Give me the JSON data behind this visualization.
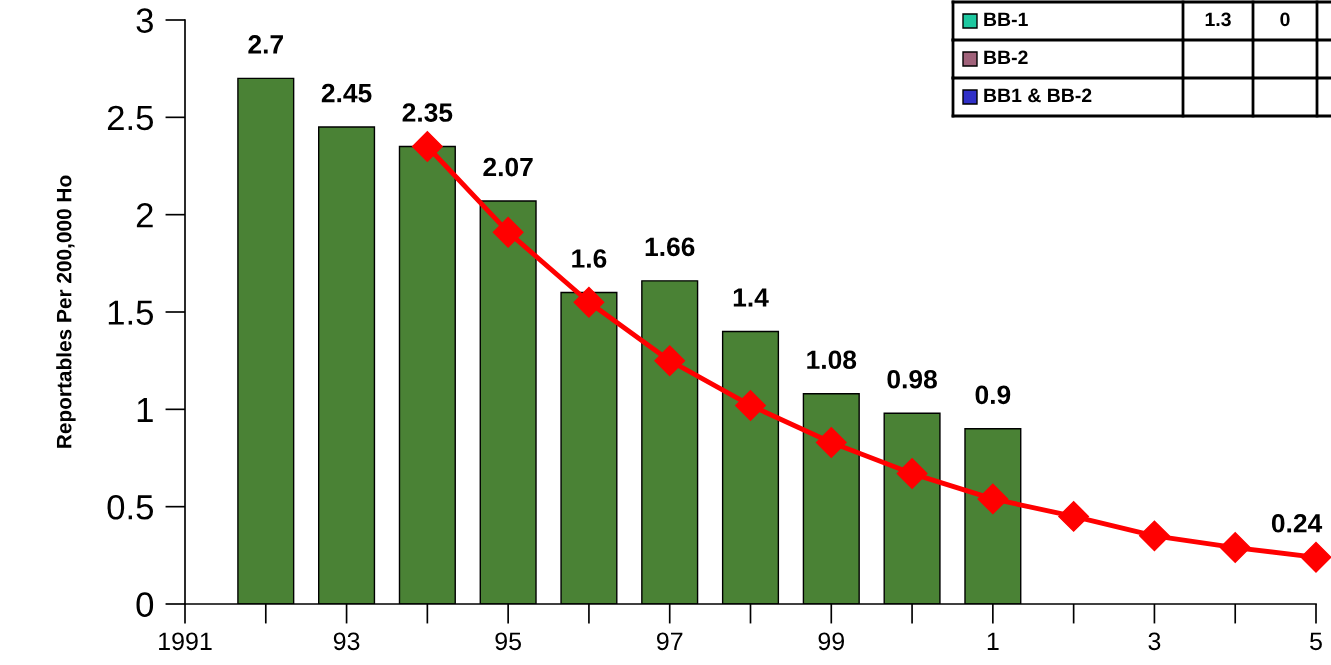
{
  "chart_data": {
    "type": "bar",
    "ylabel": "Reportables Per 200,000 Ho",
    "categories": [
      "1991",
      null,
      "93",
      null,
      "95",
      null,
      "97",
      null,
      "99",
      null,
      "1",
      null,
      "3",
      null,
      "5"
    ],
    "ylim": [
      0,
      3
    ],
    "yticks": [
      0,
      0.5,
      1,
      1.5,
      2,
      2.5,
      3
    ],
    "grid": false,
    "legend": false,
    "series": [
      {
        "color": "#4a8235",
        "values": [
          null,
          2.7,
          2.45,
          2.35,
          2.07,
          1.6,
          1.66,
          1.4,
          1.08,
          0.98,
          0.9,
          null,
          null,
          null,
          null
        ],
        "data_labels": true
      },
      {
        "type": "line",
        "color": "#ff0000",
        "marker": "diamond",
        "line_style": "solid",
        "values": [
          null,
          null,
          null,
          2.35,
          1.91,
          1.55,
          1.25,
          1.02,
          0.83,
          0.67,
          0.54,
          0.45,
          0.35,
          0.29,
          0.24
        ],
        "value_labels": [
          null,
          null,
          null,
          null,
          null,
          null,
          null,
          null,
          null,
          null,
          null,
          null,
          null,
          null,
          "0.24"
        ]
      }
    ],
    "annotations": [
      "BB-1",
      "1.3",
      "0",
      "BB-2",
      "BB1 & BB-2"
    ]
  }
}
